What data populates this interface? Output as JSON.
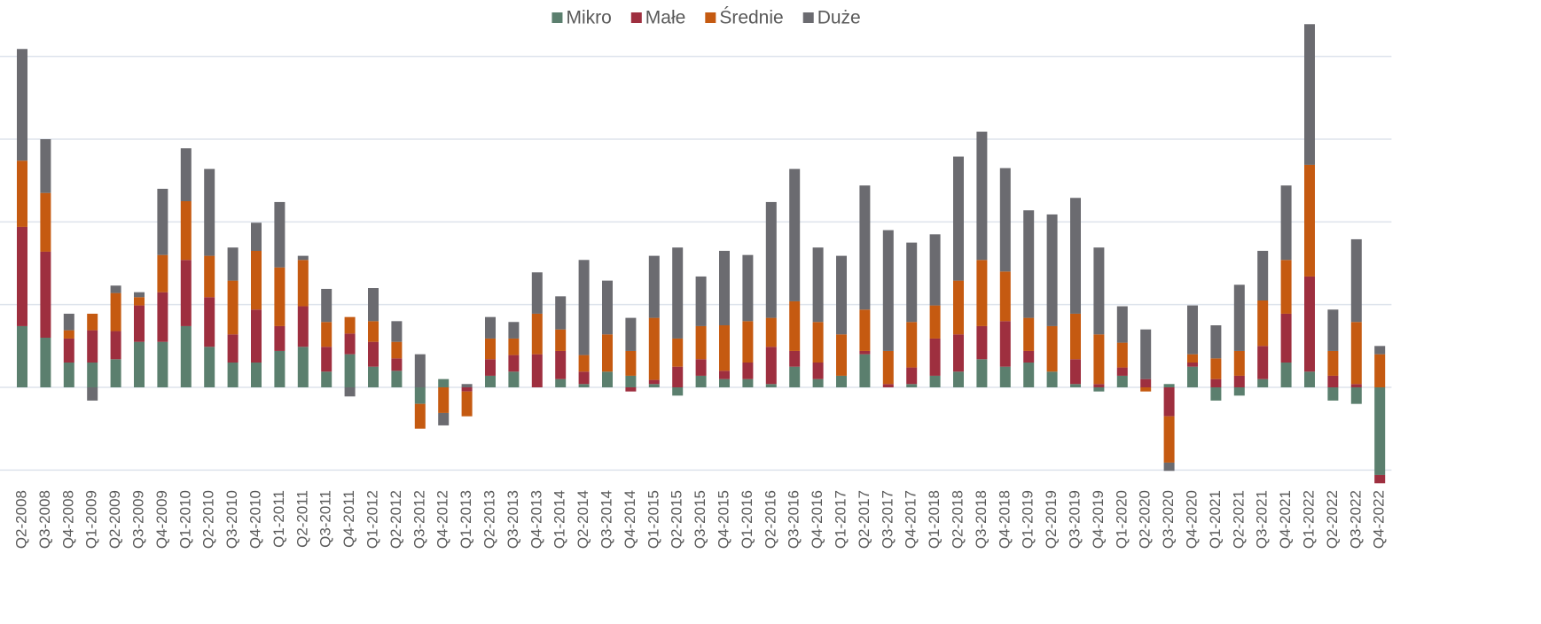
{
  "chart_data": {
    "type": "stacked_bar",
    "categories": [
      "Q2-2008",
      "Q3-2008",
      "Q4-2008",
      "Q1-2009",
      "Q2-2009",
      "Q3-2009",
      "Q4-2009",
      "Q1-2010",
      "Q2-2010",
      "Q3-2010",
      "Q4-2010",
      "Q1-2011",
      "Q2-2011",
      "Q3-2011",
      "Q4-2011",
      "Q1-2012",
      "Q2-2012",
      "Q3-2012",
      "Q4-2012",
      "Q1-2013",
      "Q2-2013",
      "Q3-2013",
      "Q4-2013",
      "Q1-2014",
      "Q2-2014",
      "Q3-2014",
      "Q4-2014",
      "Q1-2015",
      "Q2-2015",
      "Q3-2015",
      "Q4-2015",
      "Q1-2016",
      "Q2-2016",
      "Q3-2016",
      "Q4-2016",
      "Q1-2017",
      "Q2-2017",
      "Q3-2017",
      "Q4-2017",
      "Q1-2018",
      "Q2-2018",
      "Q3-2018",
      "Q4-2018",
      "Q1-2019",
      "Q2-2019",
      "Q3-2019",
      "Q4-2019",
      "Q1-2020",
      "Q2-2020",
      "Q3-2020",
      "Q4-2020",
      "Q1-2021",
      "Q2-2021",
      "Q3-2021",
      "Q4-2021",
      "Q1-2022",
      "Q2-2022",
      "Q3-2022",
      "Q4-2022"
    ],
    "series": [
      {
        "name": "Mikro",
        "color": "#5b7f6e",
        "values": [
          0.74,
          0.6,
          0.3,
          0.3,
          0.34,
          0.55,
          0.55,
          0.74,
          0.49,
          0.3,
          0.3,
          0.44,
          0.49,
          0.19,
          0.4,
          0.25,
          0.2,
          -0.2,
          0.1,
          0,
          0.14,
          0.19,
          0,
          0.1,
          0.04,
          0.19,
          0.14,
          0.04,
          -0.1,
          0.14,
          0.1,
          0.1,
          0.04,
          0.25,
          0.1,
          0.14,
          0.4,
          0,
          0.04,
          0.14,
          0.19,
          0.34,
          0.25,
          0.3,
          0.19,
          0.04,
          -0.05,
          0.14,
          0,
          0.04,
          0.25,
          -0.16,
          -0.1,
          0.1,
          0.3,
          0.19,
          -0.16,
          -0.2,
          -1.06
        ]
      },
      {
        "name": "Małe",
        "color": "#9e2f3f",
        "values": [
          1.2,
          1.04,
          0.29,
          0.39,
          0.34,
          0.44,
          0.6,
          0.8,
          0.6,
          0.34,
          0.64,
          0.3,
          0.49,
          0.3,
          0.25,
          0.3,
          0.15,
          0,
          0,
          -0.05,
          0.2,
          0.2,
          0.4,
          0.34,
          0.15,
          0,
          -0.05,
          0.05,
          0.25,
          0.2,
          0.1,
          0.2,
          0.45,
          0.19,
          0.2,
          0,
          0.04,
          0.04,
          0.2,
          0.45,
          0.45,
          0.4,
          0.55,
          0.14,
          0,
          0.3,
          0.04,
          0.1,
          0.1,
          -0.35,
          0.05,
          0.1,
          0.14,
          0.4,
          0.59,
          1.15,
          0.14,
          0.04,
          -0.1
        ]
      },
      {
        "name": "Średnie",
        "color": "#c55a11",
        "values": [
          0.8,
          0.71,
          0.1,
          0.2,
          0.46,
          0.1,
          0.45,
          0.71,
          0.5,
          0.65,
          0.71,
          0.71,
          0.56,
          0.3,
          0.2,
          0.25,
          0.2,
          -0.3,
          -0.31,
          -0.3,
          0.25,
          0.2,
          0.49,
          0.26,
          0.2,
          0.45,
          0.3,
          0.75,
          0.34,
          0.4,
          0.55,
          0.5,
          0.35,
          0.6,
          0.49,
          0.5,
          0.5,
          0.4,
          0.55,
          0.4,
          0.65,
          0.8,
          0.6,
          0.4,
          0.55,
          0.55,
          0.6,
          0.3,
          -0.05,
          -0.56,
          0.1,
          0.25,
          0.3,
          0.55,
          0.65,
          1.35,
          0.3,
          0.75,
          0.4
        ]
      },
      {
        "name": "Duże",
        "color": "#6b6b70",
        "values": [
          1.35,
          0.65,
          0.2,
          -0.16,
          0.09,
          0.06,
          0.8,
          0.64,
          1.05,
          0.4,
          0.34,
          0.79,
          0.05,
          0.4,
          -0.11,
          0.4,
          0.25,
          0.4,
          -0.15,
          0.04,
          0.26,
          0.2,
          0.5,
          0.4,
          1.15,
          0.65,
          0.4,
          0.75,
          1.1,
          0.6,
          0.9,
          0.8,
          1.4,
          1.6,
          0.9,
          0.95,
          1.5,
          1.46,
          0.96,
          0.86,
          1.5,
          1.55,
          1.25,
          1.3,
          1.35,
          1.4,
          1.05,
          0.44,
          0.6,
          -0.1,
          0.59,
          0.4,
          0.8,
          0.6,
          0.9,
          1.7,
          0.5,
          1.0,
          0.1
        ]
      }
    ],
    "ylim": [
      -1.2,
      4.5
    ],
    "yticks": [
      -1,
      0,
      1,
      2,
      3,
      4
    ],
    "grid": true,
    "legend": "top"
  }
}
